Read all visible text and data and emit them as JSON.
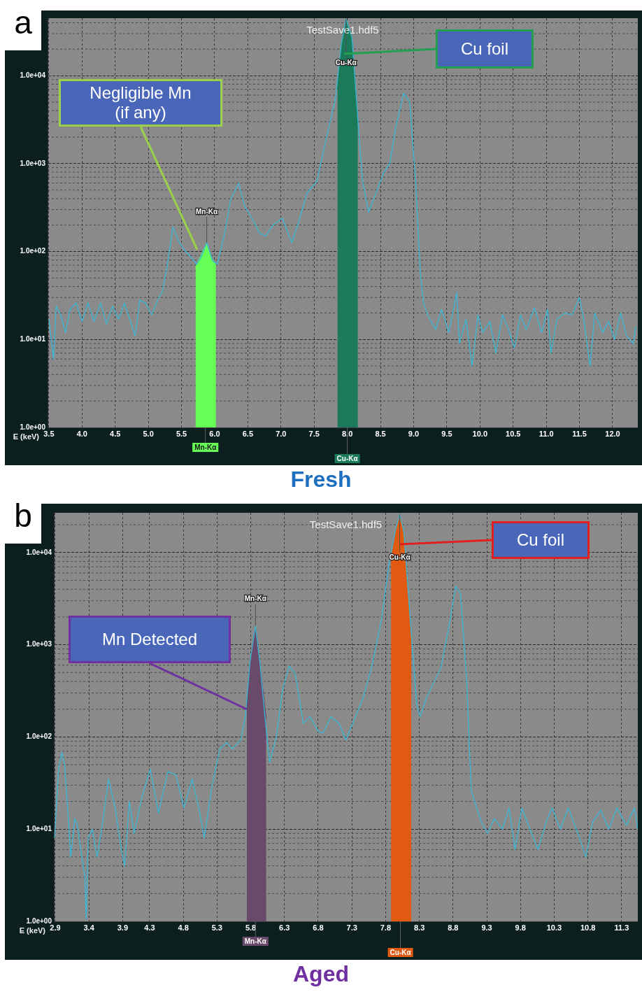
{
  "chart_data": [
    {
      "type": "line",
      "title": "TestSave1.hdf5",
      "xlabel": "E (keV)",
      "xlim": [
        3.48,
        12.38
      ],
      "ylim": [
        1,
        45000
      ],
      "log": "y",
      "grid": true,
      "xticks": [
        {
          "value": 3.5,
          "label": "3.5"
        },
        {
          "value": 4,
          "label": "4.0"
        },
        {
          "value": 4.5,
          "label": "4.5"
        },
        {
          "value": 5,
          "label": "5.0"
        },
        {
          "value": 5.5,
          "label": "5.5"
        },
        {
          "value": 6,
          "label": "6.0"
        },
        {
          "value": 6.5,
          "label": "6.5"
        },
        {
          "value": 7,
          "label": "7.0"
        },
        {
          "value": 7.5,
          "label": "7.5"
        },
        {
          "value": 8,
          "label": "8.0"
        },
        {
          "value": 8.5,
          "label": "8.5"
        },
        {
          "value": 9,
          "label": "9.0"
        },
        {
          "value": 9.5,
          "label": "9.5"
        },
        {
          "value": 10,
          "label": "10.0"
        },
        {
          "value": 10.5,
          "label": "10.5"
        },
        {
          "value": 11,
          "label": "11.0"
        },
        {
          "value": 11.5,
          "label": "11.5"
        },
        {
          "value": 12,
          "label": "12.0"
        }
      ],
      "yticks": [
        {
          "value": 1,
          "label": "1.0e+00"
        },
        {
          "value": 10,
          "label": "1.0e+01"
        },
        {
          "value": 100,
          "label": "1.0e+02"
        },
        {
          "value": 1000,
          "label": "1.0e+03"
        },
        {
          "value": 10000,
          "label": "1.0e+04"
        }
      ],
      "series": [
        {
          "type": "area",
          "color": "#66ff55",
          "x": [
            5.71,
            5.8,
            5.88,
            5.95,
            6.02
          ],
          "values": [
            66,
            93,
            126,
            85,
            70
          ]
        },
        {
          "type": "area",
          "color": "#1b7a5a",
          "x": [
            7.85,
            7.91,
            7.98,
            8.07,
            8.16
          ],
          "values": [
            7000,
            23000,
            44000,
            27000,
            3100
          ]
        },
        {
          "type": "line",
          "color": "#3ab8d6",
          "x": [
            3.5,
            3.57,
            3.61,
            3.68,
            3.75,
            3.82,
            3.91,
            4.0,
            4.09,
            4.18,
            4.28,
            4.37,
            4.46,
            4.55,
            4.64,
            4.73,
            4.8,
            4.87,
            4.96,
            5.05,
            5.14,
            5.21,
            5.28,
            5.37,
            5.46,
            5.56,
            5.65,
            5.73,
            5.79,
            5.88,
            5.97,
            6.04,
            6.15,
            6.24,
            6.36,
            6.45,
            6.56,
            6.68,
            6.77,
            6.88,
            7.02,
            7.16,
            7.27,
            7.39,
            7.54,
            7.68,
            7.82,
            7.91,
            7.98,
            8.07,
            8.16,
            8.23,
            8.32,
            8.41,
            8.55,
            8.64,
            8.73,
            8.85,
            8.94,
            9.03,
            9.1,
            9.15,
            9.21,
            9.33,
            9.42,
            9.53,
            9.65,
            9.69,
            9.79,
            9.88,
            9.97,
            10.04,
            10.15,
            10.24,
            10.34,
            10.43,
            10.52,
            10.61,
            10.7,
            10.82,
            10.93,
            11.02,
            11.07,
            11.16,
            11.28,
            11.39,
            11.5,
            11.57,
            11.66,
            11.73,
            11.85,
            11.94,
            12.03,
            12.12,
            12.21,
            12.31,
            12.35
          ],
          "values": [
            17,
            6,
            24,
            19,
            12,
            22,
            26,
            16,
            26,
            16,
            26,
            15,
            24,
            17,
            26,
            16,
            11,
            28,
            26,
            19,
            28,
            35,
            66,
            190,
            130,
            100,
            85,
            72,
            85,
            126,
            78,
            72,
            160,
            390,
            600,
            330,
            240,
            160,
            150,
            200,
            240,
            126,
            220,
            460,
            630,
            1900,
            5400,
            23000,
            44000,
            27000,
            3100,
            630,
            280,
            420,
            790,
            1000,
            2600,
            6300,
            5000,
            630,
            57,
            26,
            19,
            13,
            22,
            12,
            34,
            9,
            17,
            5,
            19,
            12,
            16,
            7,
            19,
            13,
            8,
            19,
            13,
            23,
            12,
            22,
            7,
            17,
            20,
            19,
            30,
            16,
            5,
            20,
            12,
            16,
            10,
            20,
            11,
            9,
            14
          ]
        }
      ],
      "annotations": [
        "a",
        "Fresh",
        {
          "text": "Mn-Kα",
          "x": 5.88,
          "y": 126
        },
        {
          "text": "Mn-Kα",
          "x": 5.86
        },
        {
          "text": "Cu-Kα",
          "x": 7.98,
          "y": 44000
        },
        {
          "text": "Cu-Kα",
          "x": 8.0
        },
        "Negligible Mn\n(if any)",
        "Cu foil"
      ]
    },
    {
      "type": "line",
      "title": "TestSave1.hdf5",
      "xlabel": "E (keV)",
      "xlim": [
        2.88,
        11.54
      ],
      "ylim": [
        1,
        27000
      ],
      "log": "y",
      "grid": true,
      "xticks": [
        2.9,
        3.4,
        3.9,
        4.3,
        4.8,
        5.3,
        5.8,
        6.3,
        6.8,
        7.3,
        7.8,
        8.3,
        8.8,
        9.3,
        9.8,
        10.3,
        10.8,
        11.3
      ],
      "yticks": [
        {
          "value": 1,
          "label": "1.0e+00"
        },
        {
          "value": 10,
          "label": "1.0e+01"
        },
        {
          "value": 100,
          "label": "1.0e+02"
        },
        {
          "value": 1000,
          "label": "1.0e+03"
        },
        {
          "value": 10000,
          "label": "1.0e+04"
        }
      ],
      "series": [
        {
          "type": "area",
          "color": "#6a4a6a",
          "x": [
            5.74,
            5.79,
            5.87,
            5.94,
            6.03
          ],
          "values": [
            200,
            660,
            1600,
            600,
            160
          ]
        },
        {
          "type": "area",
          "color": "#e05a12",
          "x": [
            7.88,
            7.95,
            8.01,
            8.07,
            8.18
          ],
          "values": [
            9000,
            18000,
            26000,
            17000,
            1000
          ]
        },
        {
          "type": "line",
          "color": "#3ab8d6",
          "x": [
            2.89,
            2.95,
            3.0,
            3.04,
            3.09,
            3.13,
            3.19,
            3.23,
            3.28,
            3.34,
            3.36,
            3.39,
            3.45,
            3.52,
            3.59,
            3.69,
            3.79,
            3.88,
            3.93,
            4.0,
            4.07,
            4.19,
            4.31,
            4.43,
            4.57,
            4.69,
            4.81,
            4.93,
            5.03,
            5.11,
            5.22,
            5.34,
            5.44,
            5.53,
            5.65,
            5.72,
            5.79,
            5.87,
            5.94,
            6.01,
            6.08,
            6.18,
            6.27,
            6.37,
            6.46,
            6.58,
            6.68,
            6.8,
            6.87,
            6.99,
            7.11,
            7.21,
            7.33,
            7.47,
            7.59,
            7.74,
            7.85,
            7.95,
            8.01,
            8.07,
            8.17,
            8.26,
            8.31,
            8.41,
            8.5,
            8.62,
            8.74,
            8.84,
            8.91,
            9.0,
            9.07,
            9.15,
            9.22,
            9.31,
            9.41,
            9.53,
            9.63,
            9.72,
            9.82,
            9.94,
            10.06,
            10.18,
            10.27,
            10.39,
            10.51,
            10.65,
            10.77,
            10.87,
            10.99,
            11.11,
            11.23,
            11.37,
            11.49,
            11.54
          ],
          "values": [
            8,
            45,
            68,
            49,
            15,
            5,
            13,
            11,
            6,
            3,
            1.05,
            8,
            10,
            5,
            10,
            35,
            17,
            6,
            4,
            20,
            9,
            23,
            45,
            15,
            42,
            39,
            17,
            35,
            17,
            8,
            28,
            74,
            87,
            74,
            93,
            166,
            660,
            1600,
            600,
            166,
            53,
            100,
            320,
            590,
            480,
            140,
            166,
            115,
            110,
            166,
            140,
            93,
            150,
            270,
            560,
            1900,
            7500,
            18000,
            26000,
            17000,
            1700,
            230,
            166,
            270,
            370,
            560,
            1600,
            4300,
            3600,
            440,
            26,
            17,
            12,
            9,
            13,
            10,
            17,
            6,
            17,
            10,
            6,
            12,
            17,
            10,
            17,
            9,
            5,
            12,
            16,
            10,
            17,
            11,
            17,
            10
          ]
        }
      ],
      "annotations": [
        "b",
        "Aged",
        {
          "text": "Mn-Kα",
          "x": 5.87,
          "y": 1600
        },
        {
          "text": "Mn-Kα",
          "x": 5.87
        },
        {
          "text": "Cu-Kα",
          "x": 8.01,
          "y": 26000
        },
        {
          "text": "Cu-Kα",
          "x": 8.02
        },
        "Cu foil",
        {
          "text": "Mn Detected",
          "x": 5.74,
          "y": 200
        }
      ]
    }
  ]
}
